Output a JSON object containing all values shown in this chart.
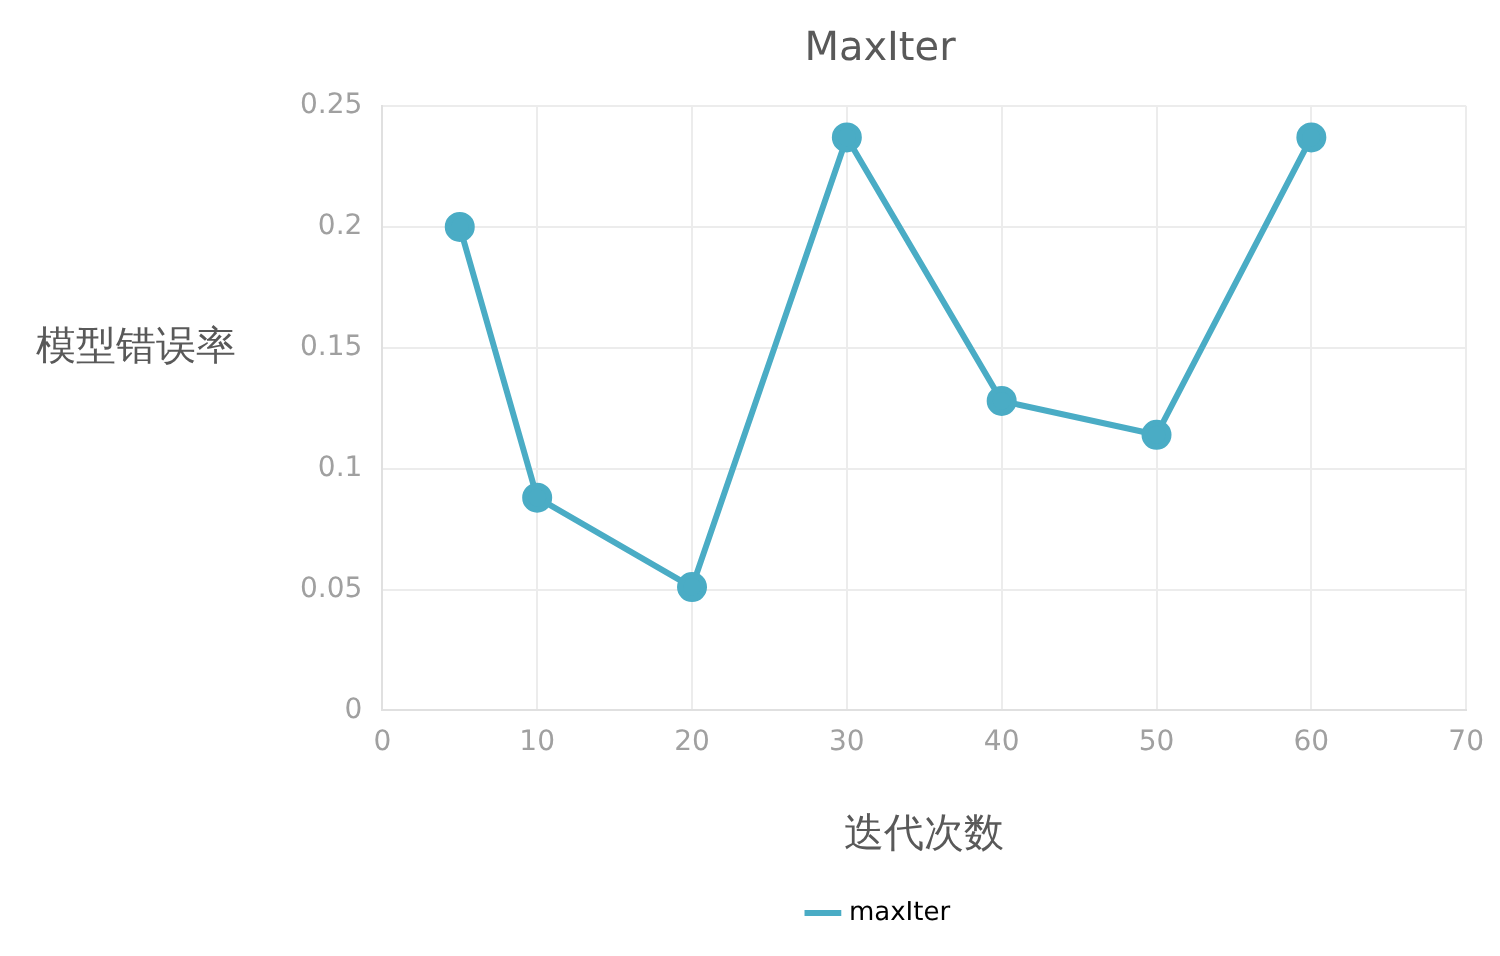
{
  "chart_data": {
    "type": "line",
    "title": "MaxIter",
    "xlabel": "迭代次数",
    "ylabel": "模型错误率",
    "x": [
      5,
      10,
      20,
      30,
      40,
      50,
      60
    ],
    "series": [
      {
        "name": "maxIter",
        "color": "#4aacc5",
        "values": [
          0.2,
          0.088,
          0.051,
          0.237,
          0.128,
          0.114,
          0.237
        ]
      }
    ],
    "xlim": [
      0,
      70
    ],
    "xticks": [
      0,
      10,
      20,
      30,
      40,
      50,
      60,
      70
    ],
    "ylim": [
      0,
      0.25
    ],
    "yticks": [
      0,
      0.05,
      0.1,
      0.15,
      0.2,
      0.25
    ],
    "grid": true,
    "legend": "bottom",
    "marker": "circle",
    "line_style": "solid"
  }
}
